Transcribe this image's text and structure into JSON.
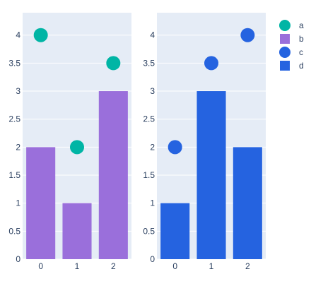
{
  "chart_data": [
    {
      "type": "bar",
      "categories": [
        "0",
        "1",
        "2"
      ],
      "ylim": [
        0,
        4.4
      ],
      "yticks": [
        "0",
        "0.5",
        "1",
        "1.5",
        "2",
        "2.5",
        "3",
        "3.5",
        "4"
      ],
      "xticks": [
        "0",
        "1",
        "2"
      ],
      "grid": true,
      "series": [
        {
          "name": "a",
          "kind": "scatter",
          "color": "#00b5a5",
          "x": [
            0,
            1,
            2
          ],
          "values": [
            4,
            2,
            3.5
          ]
        },
        {
          "name": "b",
          "kind": "bar",
          "color": "#9a6fdb",
          "x": [
            0,
            1,
            2
          ],
          "values": [
            2,
            1,
            3
          ]
        }
      ]
    },
    {
      "type": "bar",
      "categories": [
        "0",
        "1",
        "2"
      ],
      "ylim": [
        0,
        4.4
      ],
      "yticks": [
        "0",
        "0.5",
        "1",
        "1.5",
        "2",
        "2.5",
        "3",
        "3.5",
        "4"
      ],
      "xticks": [
        "0",
        "1",
        "2"
      ],
      "grid": true,
      "series": [
        {
          "name": "c",
          "kind": "scatter",
          "color": "#2563e0",
          "x": [
            0,
            1,
            2
          ],
          "values": [
            2,
            3.5,
            4
          ]
        },
        {
          "name": "d",
          "kind": "bar",
          "color": "#2563e0",
          "x": [
            0,
            1,
            2
          ],
          "values": [
            1,
            3,
            2
          ]
        }
      ]
    }
  ],
  "legend": {
    "placement": "top-right",
    "items": [
      {
        "label": "a",
        "symbol": "circle",
        "color": "#00b5a5"
      },
      {
        "label": "b",
        "symbol": "square",
        "color": "#9a6fdb"
      },
      {
        "label": "c",
        "symbol": "circle",
        "color": "#2563e0"
      },
      {
        "label": "d",
        "symbol": "square",
        "color": "#2563e0"
      }
    ]
  },
  "colors": {
    "plot_bg": "#e5ecf6",
    "grid": "#ffffff",
    "text": "#2a3f5f"
  }
}
